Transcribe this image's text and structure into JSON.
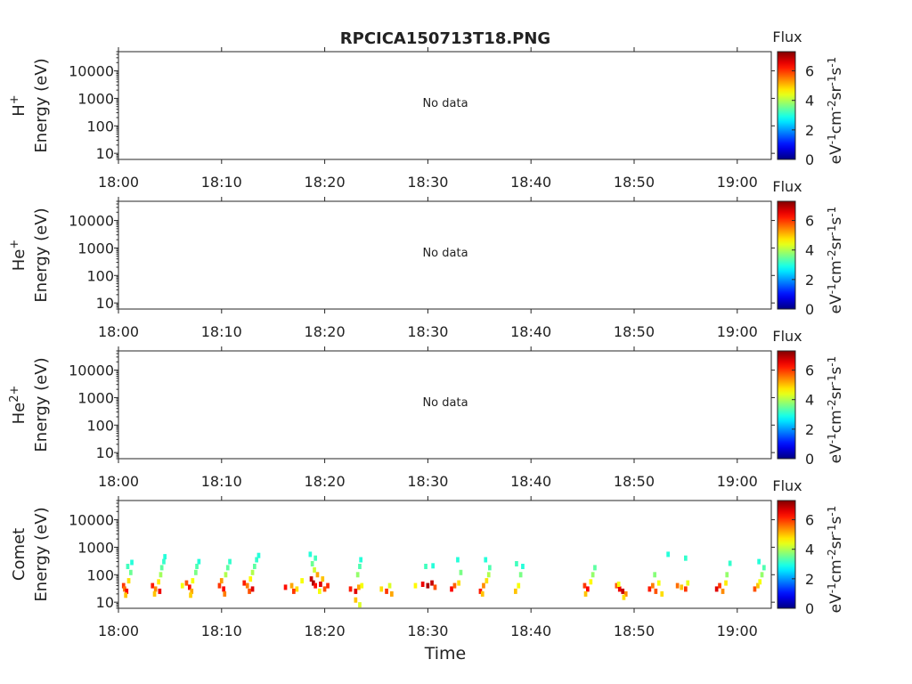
{
  "title": "RPCICA150713T18.PNG",
  "colorbar": {
    "label": "Flux",
    "unit_prefix": "eV",
    "unit_sup1": "-1",
    "unit_mid1": "cm",
    "unit_sup2": "-2",
    "unit_mid2": "sr",
    "unit_sup3": "-1",
    "unit_mid3": "s",
    "unit_sup4": "-1",
    "ticks": [
      "0",
      "2",
      "4",
      "6"
    ],
    "tick_values": [
      0,
      2,
      4,
      6
    ],
    "range": [
      0,
      7.3
    ],
    "colormap": "jet"
  },
  "xlabel_bottom": "Time",
  "chart_data": [
    {
      "type": "heatmap",
      "species": "H",
      "species_sup": "+",
      "ylabel": "Energy (eV)",
      "y_scale": "log",
      "ylim": [
        6,
        50000
      ],
      "y_ticks": [
        "10",
        "100",
        "1000",
        "10000"
      ],
      "y_tick_values": [
        10,
        100,
        1000,
        10000
      ],
      "x_ticks": [
        "18:00",
        "18:10",
        "18:20",
        "18:30",
        "18:40",
        "18:50",
        "19:00"
      ],
      "x_tick_minutes": [
        0,
        10,
        20,
        30,
        40,
        50,
        60
      ],
      "xlim_minutes": [
        0,
        63.3
      ],
      "message": "No data",
      "cells": []
    },
    {
      "type": "heatmap",
      "species": "He",
      "species_sup": "+",
      "ylabel": "Energy (eV)",
      "y_scale": "log",
      "ylim": [
        6,
        50000
      ],
      "y_ticks": [
        "10",
        "100",
        "1000",
        "10000"
      ],
      "y_tick_values": [
        10,
        100,
        1000,
        10000
      ],
      "x_ticks": [
        "18:00",
        "18:10",
        "18:20",
        "18:30",
        "18:40",
        "18:50",
        "19:00"
      ],
      "x_tick_minutes": [
        0,
        10,
        20,
        30,
        40,
        50,
        60
      ],
      "xlim_minutes": [
        0,
        63.3
      ],
      "message": "No data",
      "cells": []
    },
    {
      "type": "heatmap",
      "species": "He",
      "species_sup": "2+",
      "ylabel": "Energy (eV)",
      "y_scale": "log",
      "ylim": [
        6,
        50000
      ],
      "y_ticks": [
        "10",
        "100",
        "1000",
        "10000"
      ],
      "y_tick_values": [
        10,
        100,
        1000,
        10000
      ],
      "x_ticks": [
        "18:00",
        "18:10",
        "18:20",
        "18:30",
        "18:40",
        "18:50",
        "19:00"
      ],
      "x_tick_minutes": [
        0,
        10,
        20,
        30,
        40,
        50,
        60
      ],
      "xlim_minutes": [
        0,
        63.3
      ],
      "message": "No data",
      "cells": []
    },
    {
      "type": "heatmap",
      "species": "Comet",
      "species_sup": "",
      "ylabel": "Energy (eV)",
      "y_scale": "log",
      "ylim": [
        6,
        50000
      ],
      "y_ticks": [
        "10",
        "100",
        "1000",
        "10000"
      ],
      "y_tick_values": [
        10,
        100,
        1000,
        10000
      ],
      "x_ticks": [
        "18:00",
        "18:10",
        "18:20",
        "18:30",
        "18:40",
        "18:50",
        "19:00"
      ],
      "x_tick_minutes": [
        0,
        10,
        20,
        30,
        40,
        50,
        60
      ],
      "xlim_minutes": [
        0,
        63.3
      ],
      "message": "",
      "cells": [
        [
          0.5,
          40,
          6.0
        ],
        [
          0.6,
          30,
          5.6
        ],
        [
          0.8,
          25,
          6.4
        ],
        [
          1.0,
          60,
          4.8
        ],
        [
          1.2,
          120,
          3.5
        ],
        [
          0.9,
          200,
          3.2
        ],
        [
          1.3,
          280,
          3.0
        ],
        [
          0.7,
          18,
          5.0
        ],
        [
          3.3,
          40,
          6.2
        ],
        [
          3.6,
          30,
          5.4
        ],
        [
          3.9,
          55,
          4.7
        ],
        [
          4.1,
          100,
          3.9
        ],
        [
          4.2,
          180,
          3.4
        ],
        [
          4.4,
          300,
          3.1
        ],
        [
          4.5,
          450,
          3.0
        ],
        [
          3.5,
          20,
          5.0
        ],
        [
          4.0,
          25,
          6.5
        ],
        [
          6.2,
          40,
          4.5
        ],
        [
          6.6,
          50,
          5.8
        ],
        [
          6.9,
          35,
          6.3
        ],
        [
          7.1,
          25,
          5.2
        ],
        [
          7.2,
          60,
          4.5
        ],
        [
          7.5,
          120,
          3.6
        ],
        [
          7.6,
          200,
          3.3
        ],
        [
          7.8,
          300,
          3.0
        ],
        [
          7.0,
          18,
          4.9
        ],
        [
          9.8,
          40,
          6.0
        ],
        [
          10.0,
          60,
          5.3
        ],
        [
          10.2,
          30,
          6.4
        ],
        [
          10.4,
          100,
          4.0
        ],
        [
          10.6,
          180,
          3.4
        ],
        [
          10.8,
          300,
          3.1
        ],
        [
          10.3,
          20,
          5.5
        ],
        [
          12.2,
          50,
          6.2
        ],
        [
          12.5,
          40,
          5.5
        ],
        [
          12.8,
          70,
          4.6
        ],
        [
          13.0,
          120,
          4.0
        ],
        [
          13.2,
          200,
          3.4
        ],
        [
          13.4,
          350,
          3.1
        ],
        [
          13.6,
          500,
          3.0
        ],
        [
          12.7,
          25,
          5.8
        ],
        [
          13.0,
          30,
          6.6
        ],
        [
          16.2,
          35,
          6.3
        ],
        [
          16.8,
          40,
          5.2
        ],
        [
          17.3,
          30,
          4.8
        ],
        [
          17.0,
          25,
          6.0
        ],
        [
          17.8,
          60,
          4.5
        ],
        [
          18.7,
          70,
          6.8
        ],
        [
          18.9,
          50,
          7.0
        ],
        [
          19.1,
          40,
          6.3
        ],
        [
          19.3,
          100,
          5.2
        ],
        [
          19.0,
          150,
          4.2
        ],
        [
          18.8,
          250,
          3.5
        ],
        [
          19.1,
          400,
          3.2
        ],
        [
          18.6,
          550,
          3.0
        ],
        [
          19.6,
          45,
          6.6
        ],
        [
          20.0,
          30,
          5.8
        ],
        [
          20.3,
          40,
          6.1
        ],
        [
          19.8,
          70,
          5.0
        ],
        [
          19.5,
          25,
          4.5
        ],
        [
          22.5,
          30,
          6.2
        ],
        [
          23.0,
          25,
          6.6
        ],
        [
          23.3,
          35,
          5.2
        ],
        [
          23.6,
          40,
          4.5
        ],
        [
          23.2,
          100,
          3.8
        ],
        [
          23.4,
          200,
          3.3
        ],
        [
          23.5,
          350,
          3.0
        ],
        [
          23.0,
          12,
          5.0
        ],
        [
          23.4,
          8,
          4.3
        ],
        [
          25.5,
          30,
          4.8
        ],
        [
          26.0,
          25,
          6.0
        ],
        [
          26.3,
          40,
          4.3
        ],
        [
          26.5,
          20,
          5.2
        ],
        [
          28.8,
          40,
          4.6
        ],
        [
          29.5,
          45,
          6.5
        ],
        [
          30.0,
          40,
          7.0
        ],
        [
          30.4,
          50,
          6.8
        ],
        [
          30.7,
          35,
          5.8
        ],
        [
          29.8,
          200,
          3.2
        ],
        [
          30.5,
          210,
          3.0
        ],
        [
          32.3,
          30,
          6.4
        ],
        [
          32.6,
          40,
          5.7
        ],
        [
          33.0,
          50,
          4.8
        ],
        [
          33.2,
          120,
          3.6
        ],
        [
          32.9,
          350,
          3.0
        ],
        [
          35.1,
          25,
          6.2
        ],
        [
          35.4,
          40,
          5.4
        ],
        [
          35.7,
          60,
          4.8
        ],
        [
          35.9,
          100,
          4.0
        ],
        [
          36.0,
          180,
          3.3
        ],
        [
          35.6,
          350,
          3.0
        ],
        [
          35.3,
          20,
          5.0
        ],
        [
          38.5,
          25,
          5.0
        ],
        [
          38.8,
          40,
          4.5
        ],
        [
          39.0,
          100,
          3.6
        ],
        [
          38.6,
          250,
          3.2
        ],
        [
          39.2,
          200,
          3.0
        ],
        [
          45.2,
          40,
          6.0
        ],
        [
          45.5,
          30,
          6.4
        ],
        [
          45.8,
          55,
          4.6
        ],
        [
          46.0,
          100,
          3.8
        ],
        [
          46.2,
          180,
          3.4
        ],
        [
          45.3,
          20,
          5.0
        ],
        [
          48.3,
          40,
          5.8
        ],
        [
          48.6,
          30,
          6.5
        ],
        [
          48.9,
          25,
          6.8
        ],
        [
          49.2,
          20,
          5.4
        ],
        [
          49.0,
          15,
          4.8
        ],
        [
          48.5,
          45,
          4.5
        ],
        [
          51.5,
          30,
          6.2
        ],
        [
          51.8,
          40,
          5.5
        ],
        [
          52.1,
          25,
          5.8
        ],
        [
          52.4,
          50,
          4.5
        ],
        [
          52.7,
          20,
          4.8
        ],
        [
          52.0,
          100,
          3.7
        ],
        [
          54.2,
          40,
          5.6
        ],
        [
          54.6,
          35,
          5.0
        ],
        [
          55.0,
          30,
          6.0
        ],
        [
          55.2,
          50,
          4.4
        ],
        [
          53.3,
          550,
          3.0
        ],
        [
          55.0,
          400,
          3.1
        ],
        [
          58.0,
          30,
          6.6
        ],
        [
          58.3,
          40,
          6.0
        ],
        [
          58.6,
          25,
          5.4
        ],
        [
          58.9,
          50,
          4.7
        ],
        [
          59.0,
          100,
          3.8
        ],
        [
          59.3,
          260,
          3.1
        ],
        [
          61.7,
          30,
          5.8
        ],
        [
          62.0,
          40,
          5.0
        ],
        [
          62.2,
          55,
          4.5
        ],
        [
          62.4,
          100,
          3.8
        ],
        [
          62.6,
          180,
          3.3
        ],
        [
          62.1,
          300,
          3.0
        ]
      ]
    }
  ]
}
